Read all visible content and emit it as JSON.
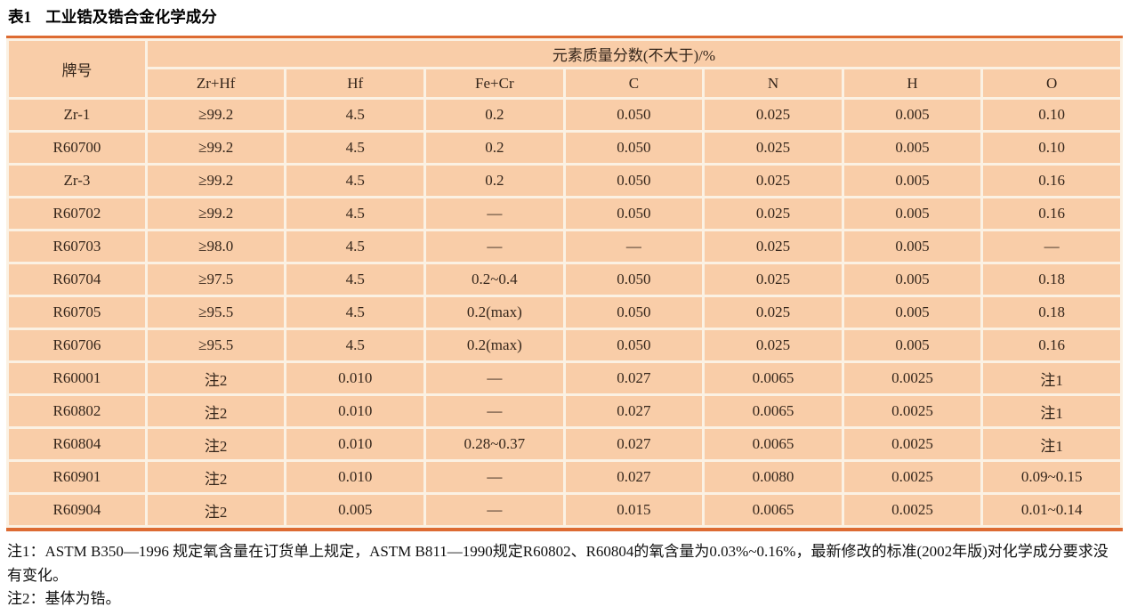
{
  "title": {
    "label": "表1",
    "text": "工业锆及锆合金化学成分"
  },
  "table": {
    "grade_header": "牌号",
    "group_header": "元素质量分数(不大于)/%",
    "columns": [
      "Zr+Hf",
      "Hf",
      "Fe+Cr",
      "C",
      "N",
      "H",
      "O"
    ],
    "rows": [
      {
        "grade": "Zr-1",
        "values": [
          "≥99.2",
          "4.5",
          "0.2",
          "0.050",
          "0.025",
          "0.005",
          "0.10"
        ]
      },
      {
        "grade": "R60700",
        "values": [
          "≥99.2",
          "4.5",
          "0.2",
          "0.050",
          "0.025",
          "0.005",
          "0.10"
        ]
      },
      {
        "grade": "Zr-3",
        "values": [
          "≥99.2",
          "4.5",
          "0.2",
          "0.050",
          "0.025",
          "0.005",
          "0.16"
        ]
      },
      {
        "grade": "R60702",
        "values": [
          "≥99.2",
          "4.5",
          "—",
          "0.050",
          "0.025",
          "0.005",
          "0.16"
        ]
      },
      {
        "grade": "R60703",
        "values": [
          "≥98.0",
          "4.5",
          "—",
          "—",
          "0.025",
          "0.005",
          "—"
        ]
      },
      {
        "grade": "R60704",
        "values": [
          "≥97.5",
          "4.5",
          "0.2~0.4",
          "0.050",
          "0.025",
          "0.005",
          "0.18"
        ]
      },
      {
        "grade": "R60705",
        "values": [
          "≥95.5",
          "4.5",
          "0.2(max)",
          "0.050",
          "0.025",
          "0.005",
          "0.18"
        ]
      },
      {
        "grade": "R60706",
        "values": [
          "≥95.5",
          "4.5",
          "0.2(max)",
          "0.050",
          "0.025",
          "0.005",
          "0.16"
        ]
      },
      {
        "grade": "R60001",
        "values": [
          "注2",
          "0.010",
          "—",
          "0.027",
          "0.0065",
          "0.0025",
          "注1"
        ]
      },
      {
        "grade": "R60802",
        "values": [
          "注2",
          "0.010",
          "—",
          "0.027",
          "0.0065",
          "0.0025",
          "注1"
        ]
      },
      {
        "grade": "R60804",
        "values": [
          "注2",
          "0.010",
          "0.28~0.37",
          "0.027",
          "0.0065",
          "0.0025",
          "注1"
        ]
      },
      {
        "grade": "R60901",
        "values": [
          "注2",
          "0.010",
          "—",
          "0.027",
          "0.0080",
          "0.0025",
          "0.09~0.15"
        ]
      },
      {
        "grade": "R60904",
        "values": [
          "注2",
          "0.005",
          "—",
          "0.015",
          "0.0065",
          "0.0025",
          "0.01~0.14"
        ]
      }
    ]
  },
  "notes": [
    "注1：ASTM B350—1996 规定氧含量在订货单上规定，ASTM B811—1990规定R60802、R60804的氧含量为0.03%~0.16%，最新修改的标准(2002年版)对化学成分要求没有变化。",
    "注2：基体为锆。"
  ],
  "colors": {
    "cell_bg": "#f9cda8",
    "grid_line": "#fbf1e3",
    "accent_border": "#dd6b32",
    "table_text": "#35261b"
  }
}
